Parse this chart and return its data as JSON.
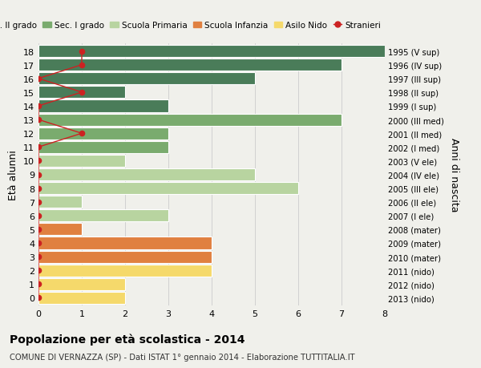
{
  "ages": [
    18,
    17,
    16,
    15,
    14,
    13,
    12,
    11,
    10,
    9,
    8,
    7,
    6,
    5,
    4,
    3,
    2,
    1,
    0
  ],
  "right_labels_by_age": {
    "18": "1995 (V sup)",
    "17": "1996 (IV sup)",
    "16": "1997 (III sup)",
    "15": "1998 (II sup)",
    "14": "1999 (I sup)",
    "13": "2000 (III med)",
    "12": "2001 (II med)",
    "11": "2002 (I med)",
    "10": "2003 (V ele)",
    "9": "2004 (IV ele)",
    "8": "2005 (III ele)",
    "7": "2006 (II ele)",
    "6": "2007 (I ele)",
    "5": "2008 (mater)",
    "4": "2009 (mater)",
    "3": "2010 (mater)",
    "2": "2011 (nido)",
    "1": "2012 (nido)",
    "0": "2013 (nido)"
  },
  "bar_values": [
    8,
    7,
    5,
    2,
    3,
    7,
    3,
    3,
    2,
    5,
    6,
    1,
    3,
    1,
    4,
    4,
    4,
    2,
    2
  ],
  "bar_colors": [
    "#4a7c59",
    "#4a7c59",
    "#4a7c59",
    "#4a7c59",
    "#4a7c59",
    "#7aab6e",
    "#7aab6e",
    "#7aab6e",
    "#b8d4a0",
    "#b8d4a0",
    "#b8d4a0",
    "#b8d4a0",
    "#b8d4a0",
    "#e08040",
    "#e08040",
    "#e08040",
    "#f5d96b",
    "#f5d96b",
    "#f5d96b"
  ],
  "stranieri_x": [
    1,
    1,
    0,
    1,
    0,
    0,
    1,
    0,
    0,
    0,
    0,
    0,
    0,
    0,
    0,
    0,
    0,
    0,
    0
  ],
  "color_sec2": "#4a7c59",
  "color_sec1": "#7aab6e",
  "color_primaria": "#b8d4a0",
  "color_infanzia": "#e08040",
  "color_nido": "#f5d96b",
  "color_stranieri": "#cc2222",
  "legend_labels": [
    "Sec. II grado",
    "Sec. I grado",
    "Scuola Primaria",
    "Scuola Infanzia",
    "Asilo Nido",
    "Stranieri"
  ],
  "ylabel_left": "Età alunni",
  "ylabel_right": "Anni di nascita",
  "title_bold": "Popolazione per età scolastica - 2014",
  "subtitle": "COMUNE DI VERNAZZA (SP) - Dati ISTAT 1° gennaio 2014 - Elaborazione TUTTITALIA.IT",
  "xlim": [
    0,
    8
  ],
  "background_color": "#f0f0eb"
}
